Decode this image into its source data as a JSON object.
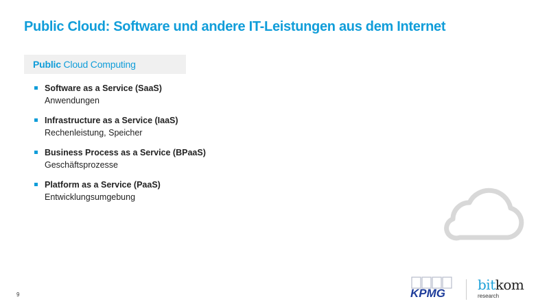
{
  "title": "Public Cloud: Software und andere IT-Leistungen aus dem Internet",
  "section": {
    "bold": "Public",
    "rest": "Cloud Computing"
  },
  "items": [
    {
      "heading": "Software as a Service (SaaS)",
      "detail": "Anwendungen"
    },
    {
      "heading": "Infrastructure as a Service (IaaS)",
      "detail": "Rechenleistung, Speicher"
    },
    {
      "heading": "Business Process as a Service (BPaaS)",
      "detail": "Geschäftsprozesse"
    },
    {
      "heading": "Platform as a Service (PaaS)",
      "detail": "Entwicklungsumgebung"
    }
  ],
  "page_number": "9",
  "logos": {
    "kpmg": "KPMG",
    "bitkom_bit": "bit",
    "bitkom_kom": "kom",
    "bitkom_sub": "research"
  },
  "colors": {
    "accent": "#109dd9",
    "cloud": "#d8d8d8",
    "kpmg": "#1e3c9a"
  },
  "icons": [
    "cloud-icon"
  ]
}
